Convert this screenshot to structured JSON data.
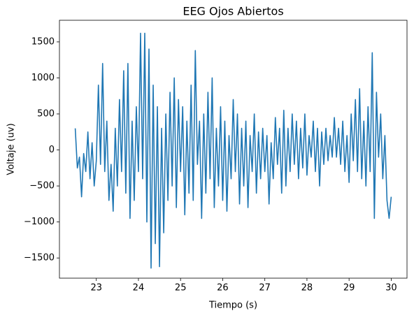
{
  "chart_data": {
    "type": "line",
    "title": "EEG Ojos Abiertos",
    "xlabel": "Tiempo (s)",
    "ylabel": "Voltaje (uv)",
    "x": [
      22.5,
      22.55,
      22.6,
      22.65,
      22.7,
      22.75,
      22.8,
      22.85,
      22.9,
      22.95,
      23.0,
      23.05,
      23.1,
      23.15,
      23.2,
      23.25,
      23.3,
      23.35,
      23.4,
      23.45,
      23.5,
      23.55,
      23.6,
      23.65,
      23.7,
      23.75,
      23.8,
      23.85,
      23.9,
      23.95,
      24.0,
      24.05,
      24.1,
      24.15,
      24.2,
      24.25,
      24.3,
      24.35,
      24.4,
      24.45,
      24.5,
      24.55,
      24.6,
      24.65,
      24.7,
      24.75,
      24.8,
      24.85,
      24.9,
      24.95,
      25.0,
      25.05,
      25.1,
      25.15,
      25.2,
      25.25,
      25.3,
      25.35,
      25.4,
      25.45,
      25.5,
      25.55,
      25.6,
      25.65,
      25.7,
      25.75,
      25.8,
      25.85,
      25.9,
      25.95,
      26.0,
      26.05,
      26.1,
      26.15,
      26.2,
      26.25,
      26.3,
      26.35,
      26.4,
      26.45,
      26.5,
      26.55,
      26.6,
      26.65,
      26.7,
      26.75,
      26.8,
      26.85,
      26.9,
      26.95,
      27.0,
      27.05,
      27.1,
      27.15,
      27.2,
      27.25,
      27.3,
      27.35,
      27.4,
      27.45,
      27.5,
      27.55,
      27.6,
      27.65,
      27.7,
      27.75,
      27.8,
      27.85,
      27.9,
      27.95,
      28.0,
      28.05,
      28.1,
      28.15,
      28.2,
      28.25,
      28.3,
      28.35,
      28.4,
      28.45,
      28.5,
      28.55,
      28.6,
      28.65,
      28.7,
      28.75,
      28.8,
      28.85,
      28.9,
      28.95,
      29.0,
      29.05,
      29.1,
      29.15,
      29.2,
      29.25,
      29.3,
      29.35,
      29.4,
      29.45,
      29.5,
      29.55,
      29.6,
      29.65,
      29.7,
      29.75,
      29.8,
      29.85,
      29.9,
      29.95,
      30.0
    ],
    "series": [
      {
        "name": "EEG",
        "color": "#1f77b4",
        "values": [
          300,
          -250,
          -100,
          -650,
          -50,
          -300,
          250,
          -400,
          100,
          -500,
          -150,
          900,
          -200,
          1200,
          -300,
          400,
          -700,
          -200,
          -850,
          300,
          -500,
          700,
          -300,
          1100,
          -600,
          1200,
          -950,
          400,
          -700,
          600,
          -300,
          1620,
          -400,
          1620,
          -1000,
          1400,
          -1640,
          900,
          -1300,
          600,
          -1620,
          300,
          -1150,
          500,
          -700,
          800,
          -500,
          1000,
          -800,
          700,
          -300,
          600,
          -900,
          400,
          -600,
          900,
          -700,
          1380,
          -200,
          400,
          -950,
          500,
          -600,
          800,
          -400,
          1000,
          -800,
          300,
          -500,
          600,
          -700,
          400,
          -850,
          200,
          -400,
          700,
          -300,
          500,
          -750,
          300,
          -500,
          400,
          -800,
          200,
          -300,
          500,
          -600,
          250,
          -400,
          300,
          -300,
          200,
          -750,
          100,
          -400,
          450,
          -200,
          300,
          -600,
          550,
          -500,
          300,
          -300,
          500,
          -200,
          400,
          -400,
          300,
          -250,
          500,
          -350,
          200,
          -100,
          400,
          -300,
          300,
          -500,
          250,
          -200,
          300,
          -150,
          200,
          -100,
          450,
          -100,
          300,
          -200,
          400,
          -300,
          200,
          -450,
          500,
          -150,
          700,
          -300,
          850,
          -400,
          400,
          -500,
          600,
          -300,
          1350,
          -950,
          800,
          -100,
          500,
          -400,
          200,
          -700,
          -950,
          -650
        ]
      }
    ],
    "xlim": [
      22.125,
      30.375
    ],
    "xticks": [
      23,
      24,
      25,
      26,
      27,
      28,
      29,
      30
    ],
    "ylim": [
      -1780,
      1800
    ],
    "yticks": [
      {
        "value": -1500,
        "label": "−1500"
      },
      {
        "value": -1000,
        "label": "−1000"
      },
      {
        "value": -500,
        "label": "−500"
      },
      0,
      500,
      1000,
      1500
    ]
  }
}
